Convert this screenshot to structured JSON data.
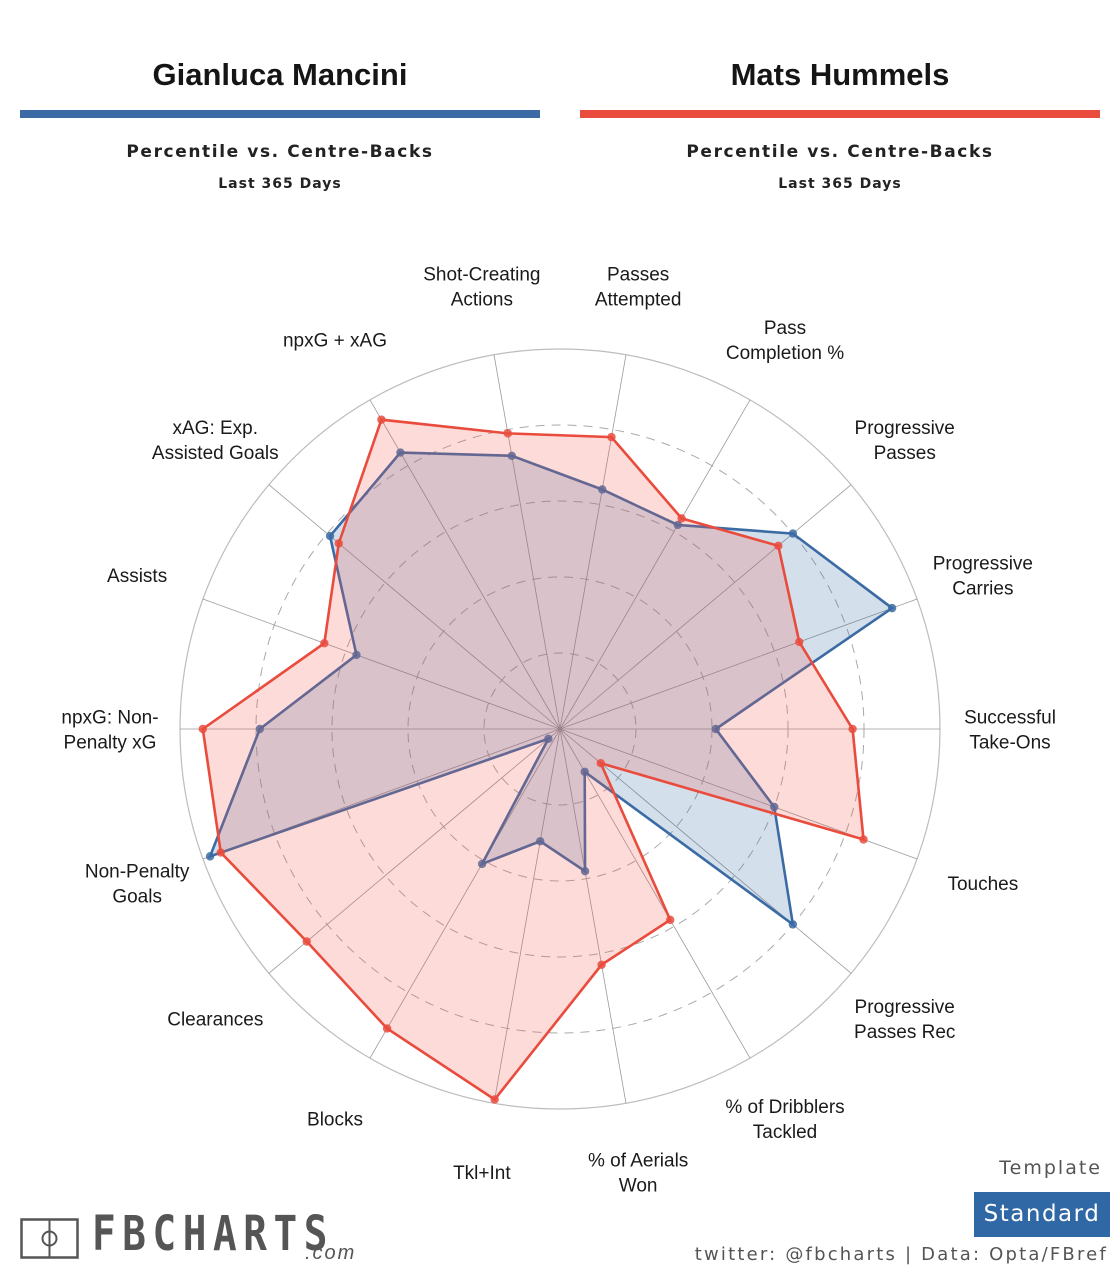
{
  "players": [
    {
      "name": "Gianluca Mancini",
      "color": "#3b6ba4",
      "subtitle": "Percentile vs. Centre-Backs",
      "period": "Last 365 Days"
    },
    {
      "name": "Mats Hummels",
      "color": "#e94b3c",
      "subtitle": "Percentile vs. Centre-Backs",
      "period": "Last 365 Days"
    }
  ],
  "chart_data": {
    "type": "radar",
    "title": "Gianluca Mancini vs Mats Hummels — Percentile vs. Centre-Backs, Last 365 Days",
    "range": [
      0,
      100
    ],
    "rings": [
      20,
      40,
      60,
      80,
      100
    ],
    "grid": true,
    "categories": [
      "Successful Take-Ons",
      "Progressive Carries",
      "Progressive Passes",
      "Pass Completion %",
      "Passes Attempted",
      "Shot-Creating Actions",
      "npxG + xAG",
      "xAG: Exp. Assisted Goals",
      "Assists",
      "npxG: Non-Penalty xG",
      "Non-Penalty Goals",
      "Clearances",
      "Blocks",
      "Tkl+Int",
      "% of Aerials Won",
      "% of Dribblers Tackled",
      "Progressive Passes Rec",
      "Touches"
    ],
    "category_lines": [
      [
        "Successful",
        "Take-Ons"
      ],
      [
        "Progressive",
        "Carries"
      ],
      [
        "Progressive",
        "Passes"
      ],
      [
        "Pass",
        "Completion %"
      ],
      [
        "Passes",
        "Attempted"
      ],
      [
        "Shot-Creating",
        "Actions"
      ],
      [
        "npxG + xAG"
      ],
      [
        "xAG: Exp.",
        "Assisted Goals"
      ],
      [
        "Assists"
      ],
      [
        "npxG: Non-",
        "Penalty xG"
      ],
      [
        "Non-Penalty",
        "Goals"
      ],
      [
        "Clearances"
      ],
      [
        "Blocks"
      ],
      [
        "Tkl+Int"
      ],
      [
        "% of Aerials",
        "Won"
      ],
      [
        "% of Dribblers",
        "Tackled"
      ],
      [
        "Progressive",
        "Passes Rec"
      ],
      [
        "Touches"
      ]
    ],
    "series": [
      {
        "name": "Gianluca Mancini",
        "color": "#3b6ba4",
        "values": [
          41,
          93,
          80,
          62,
          64,
          73,
          84,
          79,
          57,
          79,
          98,
          4,
          41,
          30,
          38,
          13,
          80,
          60
        ]
      },
      {
        "name": "Mats Hummels",
        "color": "#e94b3c",
        "values": [
          77,
          67,
          75,
          64,
          78,
          79,
          94,
          76,
          66,
          94,
          95,
          87,
          91,
          99,
          63,
          58,
          14,
          85
        ]
      }
    ]
  },
  "footer": {
    "logo_text": "FBCHARTS",
    "logo_domain": ".com",
    "template_label": "Template",
    "template_value": "Standard",
    "credit": "twitter: @fbcharts | Data: Opta/FBref"
  }
}
